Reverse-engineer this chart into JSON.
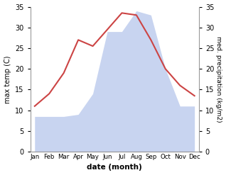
{
  "months": [
    "Jan",
    "Feb",
    "Mar",
    "Apr",
    "May",
    "Jun",
    "Jul",
    "Aug",
    "Sep",
    "Oct",
    "Nov",
    "Dec"
  ],
  "max_temp": [
    11,
    14,
    19,
    27,
    25.5,
    29.5,
    33.5,
    33,
    27,
    20,
    16,
    13.5
  ],
  "precipitation": [
    8.5,
    8.5,
    8.5,
    9,
    14,
    29,
    29,
    34,
    33,
    20,
    11,
    11
  ],
  "temp_color": "#cc4444",
  "precip_fill_color": "#c8d4f0",
  "ylabel_left": "max temp (C)",
  "ylabel_right": "med. precipitation (kg/m2)",
  "xlabel": "date (month)",
  "ylim": [
    0,
    35
  ],
  "yticks": [
    0,
    5,
    10,
    15,
    20,
    25,
    30,
    35
  ],
  "background_color": "#ffffff"
}
